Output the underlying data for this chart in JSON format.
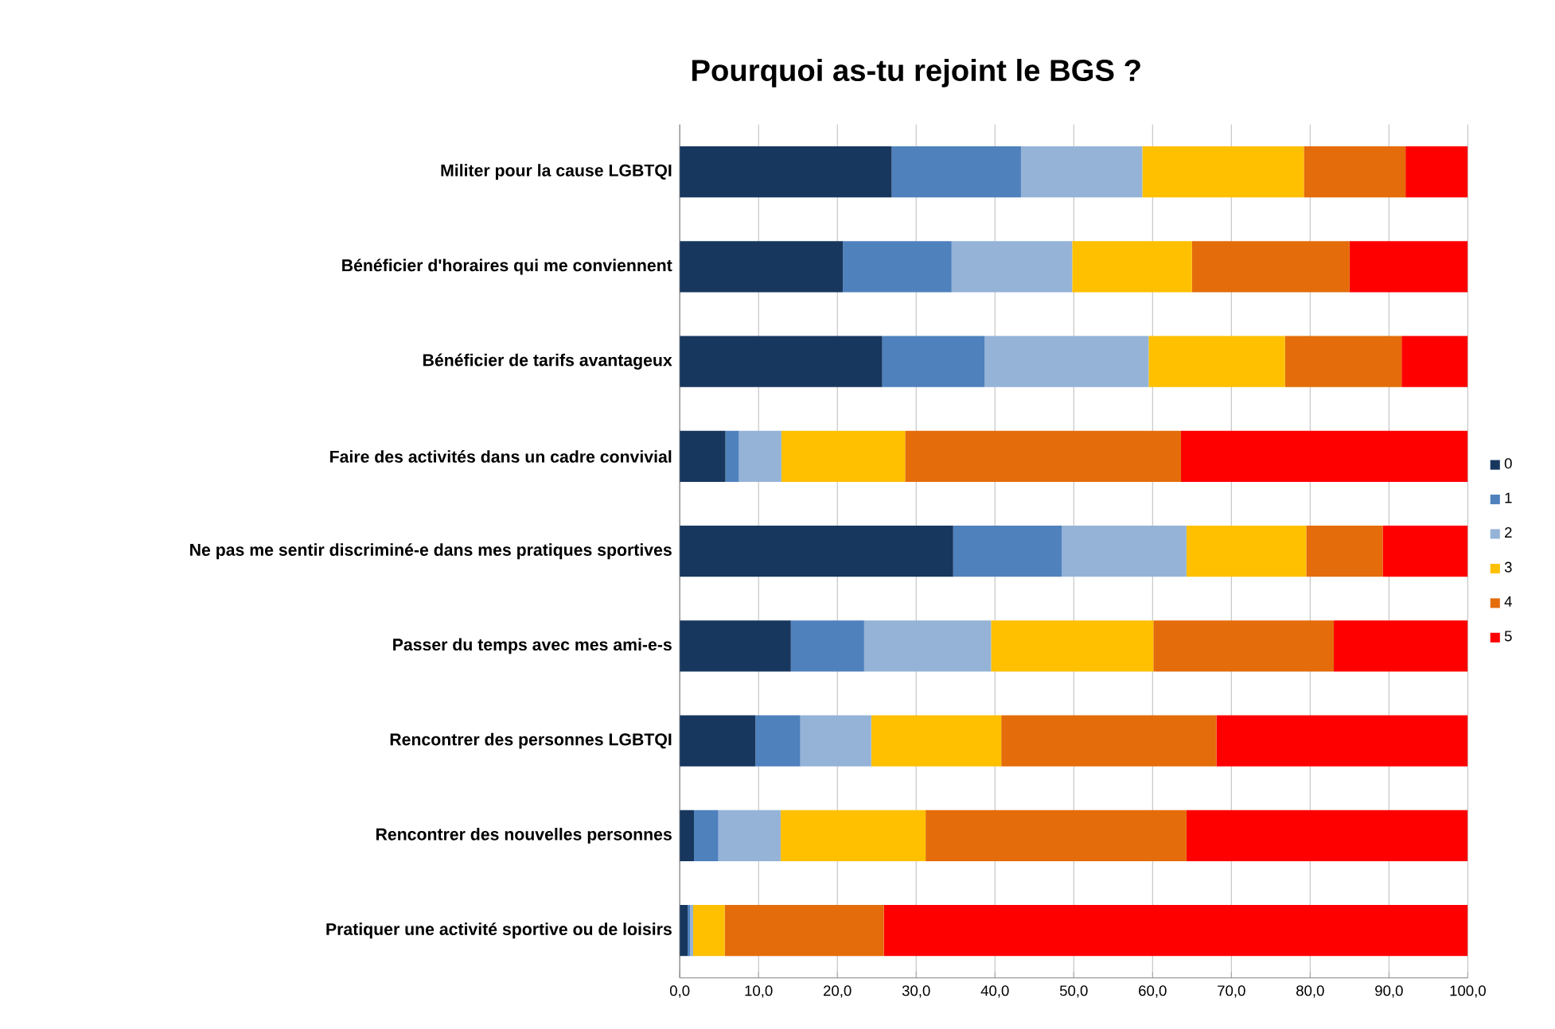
{
  "chart_data": {
    "type": "bar",
    "orientation": "horizontal",
    "stacked": true,
    "title": "Pourquoi as-tu rejoint le BGS ?",
    "categories": [
      "Militer pour la cause LGBTQI",
      "Bénéficier d'horaires qui me conviennent",
      "Bénéficier de tarifs avantageux",
      "Faire des activités dans un cadre convivial",
      "Ne pas me sentir discriminé-e dans mes pratiques sportives",
      "Passer du temps avec mes ami-e-s",
      "Rencontrer des personnes LGBTQI",
      "Rencontrer des nouvelles personnes",
      "Pratiquer une activité sportive ou de loisirs"
    ],
    "series": [
      {
        "name": "0",
        "color": "#17375e",
        "values": [
          26.9,
          20.7,
          25.7,
          5.8,
          34.7,
          14.1,
          9.6,
          1.8,
          1.0
        ]
      },
      {
        "name": "1",
        "color": "#4f81bd",
        "values": [
          16.4,
          13.8,
          13.0,
          1.7,
          13.8,
          9.3,
          5.7,
          3.1,
          0.3
        ]
      },
      {
        "name": "2",
        "color": "#95b3d7",
        "values": [
          15.4,
          15.3,
          20.8,
          5.4,
          15.8,
          16.1,
          9.0,
          7.9,
          0.4
        ]
      },
      {
        "name": "3",
        "color": "#ffc000",
        "values": [
          20.5,
          15.2,
          17.3,
          15.7,
          15.2,
          20.6,
          16.5,
          18.4,
          4.0
        ]
      },
      {
        "name": "4",
        "color": "#e46c0a",
        "values": [
          12.9,
          20.0,
          14.8,
          35.0,
          9.7,
          22.9,
          27.3,
          33.1,
          20.2
        ]
      },
      {
        "name": "5",
        "color": "#ff0000",
        "values": [
          7.9,
          15.0,
          8.4,
          36.4,
          10.8,
          17.0,
          31.9,
          35.7,
          74.1
        ]
      }
    ],
    "xlim": [
      0,
      100
    ],
    "xticks": [
      {
        "value": 0,
        "label": "0,0"
      },
      {
        "value": 10,
        "label": "10,0"
      },
      {
        "value": 20,
        "label": "20,0"
      },
      {
        "value": 30,
        "label": "30,0"
      },
      {
        "value": 40,
        "label": "40,0"
      },
      {
        "value": 50,
        "label": "50,0"
      },
      {
        "value": 60,
        "label": "60,0"
      },
      {
        "value": 70,
        "label": "70,0"
      },
      {
        "value": 80,
        "label": "80,0"
      },
      {
        "value": 90,
        "label": "90,0"
      },
      {
        "value": 100,
        "label": "100,0"
      }
    ],
    "grid": "x",
    "legend": "right"
  }
}
